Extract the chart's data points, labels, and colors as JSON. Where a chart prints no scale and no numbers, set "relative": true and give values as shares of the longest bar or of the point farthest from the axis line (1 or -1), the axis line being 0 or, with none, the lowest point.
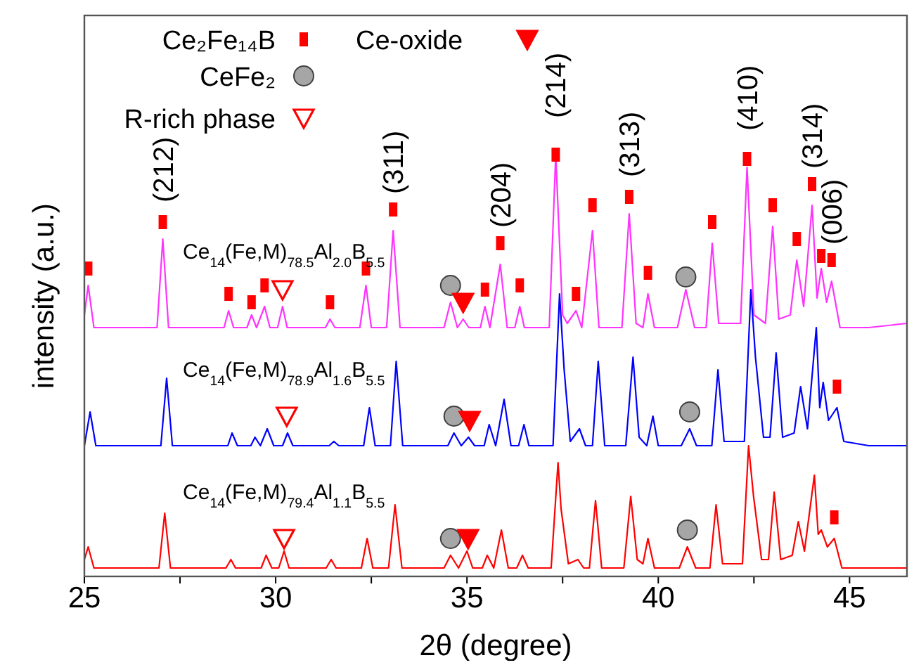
{
  "chart_data": {
    "type": "line",
    "relative": true,
    "xlabel": "2θ (degree)",
    "ylabel": "intensity (a.u.)",
    "xlim": [
      25,
      46.5
    ],
    "xticks": [
      25,
      {
        "value": 27.5,
        "label": null
      },
      30,
      {
        "value": 32.5,
        "label": null
      },
      35,
      {
        "value": 37.5,
        "label": null
      },
      40,
      {
        "value": 42.5,
        "label": null
      },
      45
    ],
    "legend": "top",
    "grid": false,
    "series": [
      {
        "name": "Ce$_{14}$(Fe,M)$_{78.5}$Al$_{2.0}$B$_{5.5}$",
        "color": "#ff33ff",
        "x": [
          25.0,
          25.1,
          25.25,
          26.9,
          27.05,
          27.2,
          28.65,
          28.77,
          28.9,
          29.25,
          29.37,
          29.5,
          29.71,
          29.85,
          30.05,
          30.18,
          30.3,
          31.3,
          31.42,
          31.55,
          32.2,
          32.36,
          32.5,
          32.9,
          33.07,
          33.25,
          34.4,
          34.57,
          34.75,
          34.9,
          35.05,
          35.35,
          35.47,
          35.6,
          35.87,
          36.05,
          36.25,
          36.38,
          36.5,
          37.15,
          37.32,
          37.5,
          37.62,
          37.85,
          38.0,
          38.28,
          38.45,
          39.05,
          39.24,
          39.42,
          39.6,
          39.73,
          39.9,
          40.5,
          40.72,
          40.95,
          41.25,
          41.41,
          41.58,
          42.15,
          42.32,
          42.5,
          42.8,
          42.99,
          43.15,
          43.45,
          43.62,
          43.8,
          44.02,
          44.15,
          44.26,
          44.4,
          44.53,
          44.75,
          45.5,
          46.5
        ],
        "values": [
          0.62,
          0.69,
          0.59,
          0.59,
          0.8,
          0.59,
          0.59,
          0.63,
          0.59,
          0.59,
          0.62,
          0.59,
          0.64,
          0.59,
          0.59,
          0.64,
          0.59,
          0.59,
          0.61,
          0.59,
          0.59,
          0.69,
          0.59,
          0.59,
          0.82,
          0.59,
          0.59,
          0.65,
          0.59,
          0.61,
          0.59,
          0.59,
          0.64,
          0.59,
          0.74,
          0.59,
          0.59,
          0.64,
          0.59,
          0.59,
          1.0,
          0.62,
          0.6,
          0.63,
          0.59,
          0.82,
          0.59,
          0.59,
          0.86,
          0.6,
          0.59,
          0.67,
          0.59,
          0.59,
          0.68,
          0.59,
          0.59,
          0.79,
          0.6,
          0.6,
          0.97,
          0.62,
          0.6,
          0.83,
          0.61,
          0.62,
          0.75,
          0.64,
          0.88,
          0.66,
          0.73,
          0.65,
          0.7,
          0.59,
          0.59,
          0.6
        ]
      },
      {
        "name": "Ce$_{14}$(Fe,M)$_{78.9}$Al$_{1.6}$B$_{5.5}$",
        "color": "#0000ff",
        "x": [
          25.0,
          25.15,
          25.3,
          27.0,
          27.15,
          27.3,
          28.75,
          28.86,
          29.0,
          29.35,
          29.46,
          29.6,
          29.78,
          29.95,
          30.18,
          30.31,
          30.45,
          31.4,
          31.52,
          31.65,
          32.3,
          32.45,
          32.6,
          33.0,
          33.15,
          33.32,
          34.5,
          34.66,
          34.85,
          35.04,
          35.2,
          35.45,
          35.58,
          35.75,
          35.97,
          36.15,
          36.35,
          36.49,
          36.62,
          37.25,
          37.42,
          37.54,
          37.7,
          37.94,
          38.1,
          38.28,
          38.43,
          38.6,
          39.15,
          39.34,
          39.5,
          39.7,
          39.86,
          40.0,
          40.6,
          40.82,
          41.0,
          41.4,
          41.56,
          41.72,
          42.25,
          42.42,
          42.54,
          42.75,
          42.92,
          43.08,
          43.25,
          43.55,
          43.72,
          43.9,
          44.13,
          44.22,
          44.31,
          44.45,
          44.67,
          44.85,
          45.5,
          46.5
        ],
        "values": [
          0.31,
          0.39,
          0.31,
          0.31,
          0.47,
          0.31,
          0.31,
          0.34,
          0.31,
          0.31,
          0.33,
          0.31,
          0.35,
          0.31,
          0.31,
          0.34,
          0.31,
          0.31,
          0.32,
          0.31,
          0.31,
          0.4,
          0.31,
          0.31,
          0.51,
          0.31,
          0.31,
          0.34,
          0.31,
          0.33,
          0.31,
          0.31,
          0.36,
          0.31,
          0.42,
          0.31,
          0.31,
          0.36,
          0.31,
          0.31,
          0.67,
          0.49,
          0.32,
          0.35,
          0.31,
          0.31,
          0.51,
          0.31,
          0.31,
          0.52,
          0.33,
          0.31,
          0.38,
          0.31,
          0.31,
          0.35,
          0.31,
          0.31,
          0.49,
          0.32,
          0.32,
          0.68,
          0.52,
          0.33,
          0.33,
          0.53,
          0.33,
          0.34,
          0.45,
          0.35,
          0.59,
          0.4,
          0.46,
          0.37,
          0.4,
          0.32,
          0.31,
          0.31
        ]
      },
      {
        "name": "Ce$_{14}$(Fe,M)$_{79.4}$Al$_{1.1}$B$_{5.5}$",
        "color": "#ff0000",
        "x": [
          25.0,
          25.1,
          25.25,
          26.95,
          27.1,
          27.25,
          28.7,
          28.83,
          28.95,
          29.62,
          29.75,
          29.9,
          30.08,
          30.22,
          30.35,
          31.32,
          31.45,
          31.58,
          32.24,
          32.39,
          32.54,
          32.95,
          33.12,
          33.3,
          34.4,
          34.57,
          34.78,
          35.0,
          35.15,
          35.4,
          35.53,
          35.7,
          35.9,
          36.08,
          36.3,
          36.45,
          36.6,
          37.2,
          37.38,
          37.46,
          37.65,
          37.9,
          38.05,
          38.2,
          38.36,
          38.52,
          39.1,
          39.28,
          39.45,
          39.6,
          39.73,
          39.9,
          40.55,
          40.76,
          40.98,
          41.35,
          41.51,
          41.68,
          42.2,
          42.36,
          42.49,
          42.7,
          42.88,
          43.03,
          43.2,
          43.5,
          43.66,
          43.82,
          44.08,
          44.18,
          44.26,
          44.42,
          44.6,
          44.8,
          45.5,
          46.5
        ],
        "values": [
          0.04,
          0.07,
          0.02,
          0.02,
          0.15,
          0.02,
          0.02,
          0.04,
          0.02,
          0.02,
          0.05,
          0.02,
          0.02,
          0.06,
          0.02,
          0.02,
          0.04,
          0.02,
          0.02,
          0.09,
          0.02,
          0.02,
          0.17,
          0.02,
          0.02,
          0.05,
          0.02,
          0.06,
          0.02,
          0.02,
          0.05,
          0.02,
          0.11,
          0.02,
          0.02,
          0.05,
          0.02,
          0.02,
          0.27,
          0.16,
          0.03,
          0.04,
          0.02,
          0.02,
          0.18,
          0.02,
          0.02,
          0.19,
          0.04,
          0.03,
          0.09,
          0.02,
          0.02,
          0.07,
          0.02,
          0.02,
          0.17,
          0.03,
          0.03,
          0.31,
          0.19,
          0.04,
          0.04,
          0.2,
          0.04,
          0.05,
          0.13,
          0.06,
          0.24,
          0.1,
          0.11,
          0.07,
          0.09,
          0.02,
          0.02,
          0.02
        ]
      },
      {
        "name": "Ce₂Fe₁₄B",
        "type": "scatter",
        "marker": "square",
        "color": "#ff0000",
        "x": [
          25.1,
          27.05,
          28.77,
          29.37,
          29.71,
          31.42,
          32.36,
          33.07,
          35.47,
          35.87,
          36.38,
          37.32,
          37.85,
          38.28,
          39.24,
          39.73,
          41.41,
          42.32,
          42.99,
          43.62,
          44.02,
          44.26,
          44.53,
          44.67,
          44.6
        ],
        "values": [
          0.73,
          0.84,
          0.67,
          0.65,
          0.69,
          0.65,
          0.73,
          0.87,
          0.68,
          0.79,
          0.69,
          1.0,
          0.67,
          0.88,
          0.9,
          0.72,
          0.84,
          0.99,
          0.88,
          0.8,
          0.93,
          0.76,
          0.75,
          0.45,
          0.14
        ]
      },
      {
        "name": "CeFe₂",
        "type": "scatter",
        "marker": "circle",
        "color": "#a6a6a6",
        "x": [
          34.57,
          40.72,
          34.66,
          40.82,
          34.57,
          40.76
        ],
        "values": [
          0.69,
          0.71,
          0.38,
          0.39,
          0.09,
          0.11
        ]
      },
      {
        "name": "R-rich phase",
        "type": "scatter",
        "marker": "triangle",
        "color": "#ff0000",
        "x": [
          30.18,
          30.29,
          30.22
        ],
        "values": [
          0.68,
          0.38,
          0.09
        ]
      },
      {
        "name": "Ce-oxide",
        "type": "scatter",
        "marker": "triangle",
        "color": "#ff0000",
        "x": [
          34.9,
          35.07,
          35.03
        ],
        "values": [
          0.65,
          0.37,
          0.09
        ]
      }
    ],
    "annotations": [
      {
        "text": "(212)",
        "x": 27.05,
        "y": 0.8
      },
      {
        "text": "(311)",
        "x": 33.07,
        "y": 0.82
      },
      {
        "text": "(204)",
        "x": 35.87,
        "y": 0.74
      },
      {
        "text": "(214)",
        "x": 37.32,
        "y": 1.0
      },
      {
        "text": "(313)",
        "x": 39.24,
        "y": 0.86
      },
      {
        "text": "(410)",
        "x": 42.32,
        "y": 0.97
      },
      {
        "text": "(314)",
        "x": 44.02,
        "y": 0.88
      },
      {
        "text": "(006)",
        "x": 44.53,
        "y": 0.7
      }
    ]
  }
}
